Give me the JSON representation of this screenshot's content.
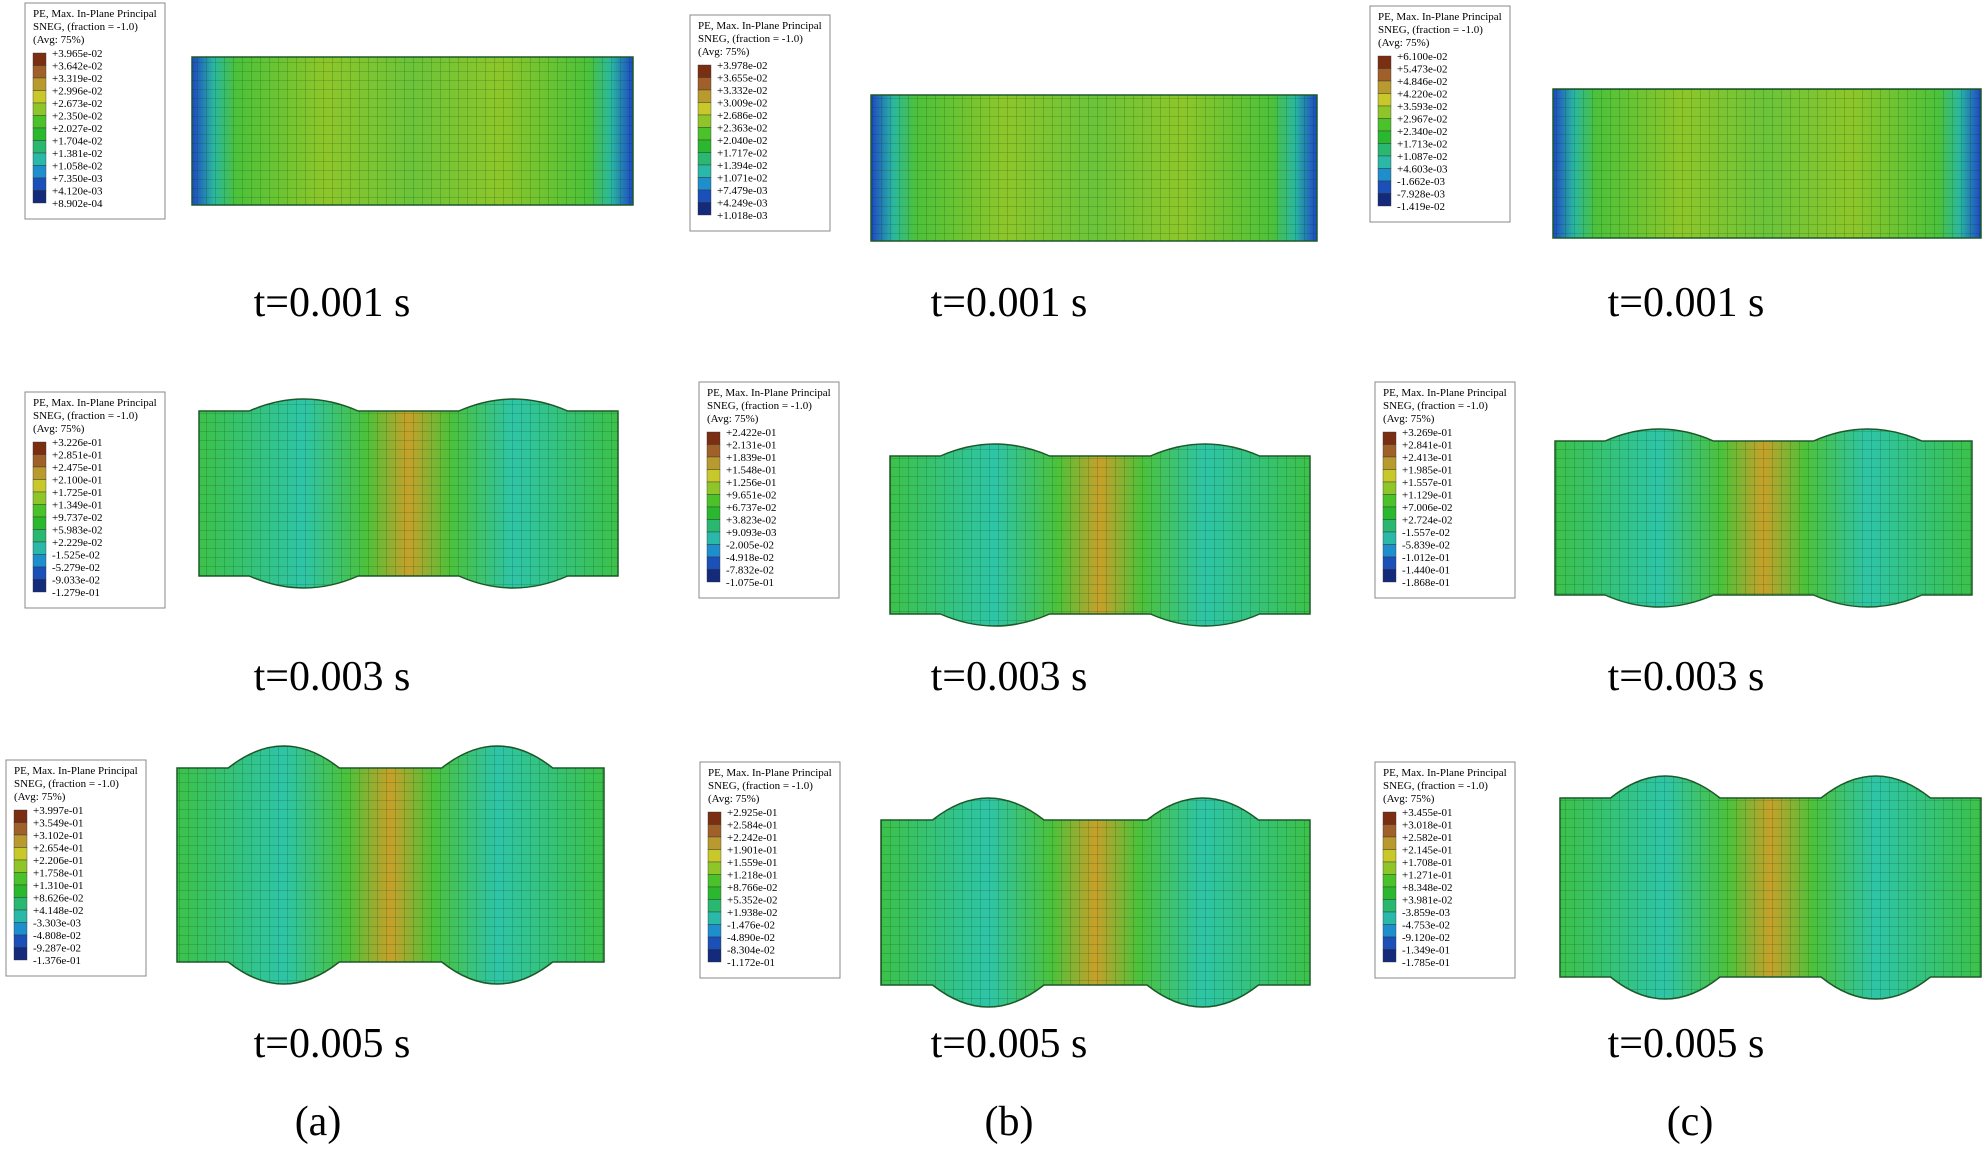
{
  "panels": [
    {
      "legend": {
        "title_lines": [
          "PE, Max. In-Plane Principal",
          "SNEG, (fraction = -1.0)",
          "(Avg: 75%)"
        ],
        "values": [
          "+3.965e-02",
          "+3.642e-02",
          "+3.319e-02",
          "+2.996e-02",
          "+2.673e-02",
          "+2.350e-02",
          "+2.027e-02",
          "+1.704e-02",
          "+1.381e-02",
          "+1.058e-02",
          "+7.350e-03",
          "+4.120e-03",
          "+8.902e-04"
        ]
      },
      "time": "t=0.001 s"
    },
    {
      "legend": {
        "title_lines": [
          "PE, Max. In-Plane Principal",
          "SNEG, (fraction = -1.0)",
          "(Avg: 75%)"
        ],
        "values": [
          "+3.978e-02",
          "+3.655e-02",
          "+3.332e-02",
          "+3.009e-02",
          "+2.686e-02",
          "+2.363e-02",
          "+2.040e-02",
          "+1.717e-02",
          "+1.394e-02",
          "+1.071e-02",
          "+7.479e-03",
          "+4.249e-03",
          "+1.018e-03"
        ]
      },
      "time": "t=0.001 s"
    },
    {
      "legend": {
        "title_lines": [
          "PE, Max. In-Plane Principal",
          "SNEG, (fraction = -1.0)",
          "(Avg: 75%)"
        ],
        "values": [
          "+6.100e-02",
          "+5.473e-02",
          "+4.846e-02",
          "+4.220e-02",
          "+3.593e-02",
          "+2.967e-02",
          "+2.340e-02",
          "+1.713e-02",
          "+1.087e-02",
          "+4.603e-03",
          "-1.662e-03",
          "-7.928e-03",
          "-1.419e-02"
        ]
      },
      "time": "t=0.001 s"
    },
    {
      "legend": {
        "title_lines": [
          "PE, Max. In-Plane Principal",
          "SNEG, (fraction = -1.0)",
          "(Avg: 75%)"
        ],
        "values": [
          "+3.226e-01",
          "+2.851e-01",
          "+2.475e-01",
          "+2.100e-01",
          "+1.725e-01",
          "+1.349e-01",
          "+9.737e-02",
          "+5.983e-02",
          "+2.229e-02",
          "-1.525e-02",
          "-5.279e-02",
          "-9.033e-02",
          "-1.279e-01"
        ]
      },
      "time": "t=0.003 s"
    },
    {
      "legend": {
        "title_lines": [
          "PE, Max. In-Plane Principal",
          "SNEG, (fraction = -1.0)",
          "(Avg: 75%)"
        ],
        "values": [
          "+2.422e-01",
          "+2.131e-01",
          "+1.839e-01",
          "+1.548e-01",
          "+1.256e-01",
          "+9.651e-02",
          "+6.737e-02",
          "+3.823e-02",
          "+9.093e-03",
          "-2.005e-02",
          "-4.918e-02",
          "-7.832e-02",
          "-1.075e-01"
        ]
      },
      "time": "t=0.003 s"
    },
    {
      "legend": {
        "title_lines": [
          "PE, Max. In-Plane Principal",
          "SNEG, (fraction = -1.0)",
          "(Avg: 75%)"
        ],
        "values": [
          "+3.269e-01",
          "+2.841e-01",
          "+2.413e-01",
          "+1.985e-01",
          "+1.557e-01",
          "+1.129e-01",
          "+7.006e-02",
          "+2.724e-02",
          "-1.557e-02",
          "-5.839e-02",
          "-1.012e-01",
          "-1.440e-01",
          "-1.868e-01"
        ]
      },
      "time": "t=0.003 s"
    },
    {
      "legend": {
        "title_lines": [
          "PE, Max. In-Plane Principal",
          "SNEG, (fraction = -1.0)",
          "(Avg: 75%)"
        ],
        "values": [
          "+3.997e-01",
          "+3.549e-01",
          "+3.102e-01",
          "+2.654e-01",
          "+2.206e-01",
          "+1.758e-01",
          "+1.310e-01",
          "+8.626e-02",
          "+4.148e-02",
          "-3.303e-03",
          "-4.808e-02",
          "-9.287e-02",
          "-1.376e-01"
        ]
      },
      "time": "t=0.005 s"
    },
    {
      "legend": {
        "title_lines": [
          "PE, Max. In-Plane Principal",
          "SNEG, (fraction = -1.0)",
          "(Avg: 75%)"
        ],
        "values": [
          "+2.925e-01",
          "+2.584e-01",
          "+2.242e-01",
          "+1.901e-01",
          "+1.559e-01",
          "+1.218e-01",
          "+8.766e-02",
          "+5.352e-02",
          "+1.938e-02",
          "-1.476e-02",
          "-4.890e-02",
          "-8.304e-02",
          "-1.172e-01"
        ]
      },
      "time": "t=0.005 s"
    },
    {
      "legend": {
        "title_lines": [
          "PE, Max. In-Plane Principal",
          "SNEG, (fraction = -1.0)",
          "(Avg: 75%)"
        ],
        "values": [
          "+3.455e-01",
          "+3.018e-01",
          "+2.582e-01",
          "+2.145e-01",
          "+1.708e-01",
          "+1.271e-01",
          "+8.348e-02",
          "+3.981e-02",
          "-3.859e-03",
          "-4.753e-02",
          "-9.120e-02",
          "-1.349e-01",
          "-1.785e-01"
        ]
      },
      "time": "t=0.005 s"
    }
  ],
  "column_labels": [
    "(a)",
    "(b)",
    "(c)"
  ],
  "legend_colors": [
    "#7a2e12",
    "#a0602a",
    "#b99a2e",
    "#c8c82a",
    "#8ec62a",
    "#4cc22a",
    "#2ab82e",
    "#2ab870",
    "#2ab8a8",
    "#1e8ecc",
    "#1a50b8",
    "#142a7a"
  ]
}
